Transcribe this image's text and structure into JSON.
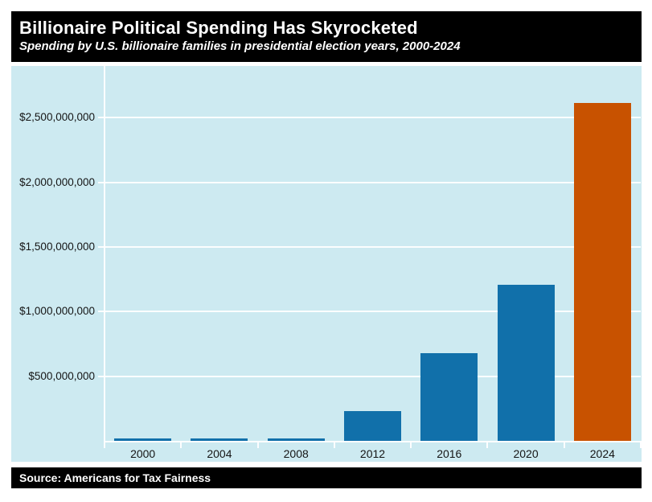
{
  "header": {
    "title": "Billionaire Political Spending Has Skyrocketed",
    "subtitle": "Spending by U.S. billionaire families in presidential election years, 2000-2024"
  },
  "footer": {
    "source": "Source: Americans for Tax Fairness"
  },
  "chart_data": {
    "type": "bar",
    "title": "Billionaire Political Spending Has Skyrocketed",
    "subtitle": "Spending by U.S. billionaire families in presidential election years, 2000-2024",
    "source": "Source: Americans for Tax Fairness",
    "xlabel": "",
    "ylabel": "",
    "categories": [
      "2000",
      "2004",
      "2008",
      "2012",
      "2016",
      "2020",
      "2024"
    ],
    "values": [
      16000000,
      17000000,
      18000000,
      231000000,
      680000000,
      1210000000,
      2615000000
    ],
    "ylim": [
      0,
      2900000000
    ],
    "grid": true,
    "legend": "none",
    "yticks": [
      {
        "value": 500000000,
        "label": "$500,000,000"
      },
      {
        "value": 1000000000,
        "label": "$1,000,000,000"
      },
      {
        "value": 1500000000,
        "label": "$1,500,000,000"
      },
      {
        "value": 2000000000,
        "label": "$2,000,000,000"
      },
      {
        "value": 2500000000,
        "label": "$2,500,000,000"
      }
    ],
    "bar_colors": [
      "#1170aa",
      "#1170aa",
      "#1170aa",
      "#1170aa",
      "#1170aa",
      "#1170aa",
      "#c85200"
    ],
    "highlighted_category": "2024",
    "colors": {
      "bar_blue": "#1170aa",
      "bar_orange": "#c85200",
      "plot_background": "#cdeaf1",
      "gridline": "#ffffff",
      "header_background": "#000000",
      "header_text": "#ffffff",
      "tick_label_text": "#151515"
    }
  }
}
